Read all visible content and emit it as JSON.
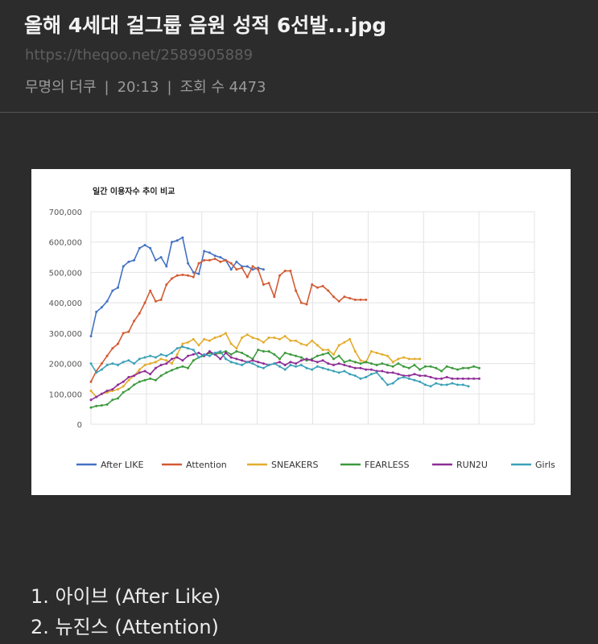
{
  "post": {
    "title": "올해 4세대 걸그룹 음원 성적 6선발...jpg",
    "url": "https://theqoo.net/2589905889",
    "author": "무명의 더쿠",
    "time": "20:13",
    "views": "조회 수 4473"
  },
  "list": [
    "1. 아이브 (After Like)",
    "2. 뉴진스 (Attention)"
  ],
  "chart_data": {
    "type": "line",
    "title": "일간 이용자수 추이 비교",
    "ylim": [
      0,
      700000
    ],
    "yticks": [
      "700,000",
      "600,000",
      "500,000",
      "400,000",
      "300,000",
      "200,000",
      "100,000",
      "0"
    ],
    "grid": true,
    "legend_position": "bottom",
    "series": [
      {
        "name": "After LIKE",
        "color": "#4472c4",
        "values": [
          290000,
          370000,
          385000,
          405000,
          440000,
          450000,
          520000,
          535000,
          540000,
          580000,
          590000,
          580000,
          540000,
          550000,
          520000,
          600000,
          605000,
          615000,
          530000,
          500000,
          495000,
          570000,
          565000,
          555000,
          550000,
          540000,
          510000,
          535000,
          520000,
          520000,
          510000,
          515000,
          510000
        ]
      },
      {
        "name": "Attention",
        "color": "#d35a34",
        "values": [
          140000,
          175000,
          200000,
          225000,
          250000,
          265000,
          300000,
          305000,
          340000,
          365000,
          400000,
          440000,
          405000,
          410000,
          460000,
          480000,
          490000,
          492000,
          490000,
          485000,
          530000,
          540000,
          540000,
          545000,
          535000,
          540000,
          530000,
          510000,
          515000,
          485000,
          520000,
          510000,
          460000,
          465000,
          420000,
          490000,
          505000,
          505000,
          440000,
          400000,
          395000,
          460000,
          450000,
          455000,
          440000,
          420000,
          405000,
          420000,
          415000,
          410000,
          410000,
          410000
        ]
      },
      {
        "name": "SNEAKERS",
        "color": "#e3ac2c",
        "values": [
          110000,
          90000,
          100000,
          105000,
          110000,
          115000,
          125000,
          145000,
          160000,
          180000,
          195000,
          200000,
          205000,
          215000,
          210000,
          200000,
          230000,
          265000,
          270000,
          280000,
          260000,
          280000,
          275000,
          285000,
          290000,
          300000,
          265000,
          250000,
          285000,
          295000,
          285000,
          280000,
          270000,
          285000,
          285000,
          280000,
          290000,
          275000,
          275000,
          265000,
          260000,
          275000,
          260000,
          245000,
          245000,
          230000,
          260000,
          270000,
          280000,
          240000,
          210000,
          205000,
          240000,
          235000,
          230000,
          225000,
          205000,
          215000,
          220000,
          215000,
          215000,
          215000
        ]
      },
      {
        "name": "FEARLESS",
        "color": "#3c9a3c",
        "values": [
          55000,
          60000,
          62000,
          65000,
          80000,
          85000,
          105000,
          115000,
          130000,
          140000,
          145000,
          150000,
          145000,
          160000,
          170000,
          178000,
          185000,
          190000,
          185000,
          210000,
          220000,
          225000,
          235000,
          230000,
          235000,
          240000,
          230000,
          240000,
          235000,
          225000,
          215000,
          245000,
          240000,
          240000,
          230000,
          215000,
          235000,
          230000,
          225000,
          220000,
          210000,
          215000,
          225000,
          230000,
          235000,
          215000,
          225000,
          205000,
          210000,
          205000,
          200000,
          205000,
          200000,
          195000,
          200000,
          195000,
          190000,
          200000,
          190000,
          185000,
          195000,
          180000,
          190000,
          190000,
          185000,
          175000,
          190000,
          185000,
          180000,
          185000,
          185000,
          190000,
          185000
        ]
      },
      {
        "name": "RUN2U",
        "color": "#8e2d96",
        "values": [
          80000,
          90000,
          100000,
          110000,
          115000,
          130000,
          140000,
          155000,
          160000,
          170000,
          175000,
          165000,
          185000,
          195000,
          200000,
          215000,
          220000,
          210000,
          225000,
          230000,
          235000,
          225000,
          240000,
          230000,
          215000,
          235000,
          220000,
          215000,
          210000,
          205000,
          210000,
          205000,
          200000,
          195000,
          200000,
          205000,
          195000,
          205000,
          200000,
          210000,
          215000,
          210000,
          205000,
          210000,
          200000,
          195000,
          200000,
          195000,
          190000,
          185000,
          185000,
          180000,
          180000,
          175000,
          175000,
          170000,
          170000,
          165000,
          160000,
          160000,
          165000,
          160000,
          160000,
          155000,
          150000,
          150000,
          155000,
          150000,
          150000,
          150000,
          150000,
          150000,
          150000
        ]
      },
      {
        "name": "Girls",
        "color": "#3aa1b8",
        "values": [
          200000,
          170000,
          180000,
          195000,
          200000,
          195000,
          205000,
          210000,
          200000,
          215000,
          220000,
          225000,
          220000,
          230000,
          225000,
          235000,
          250000,
          255000,
          250000,
          245000,
          220000,
          230000,
          225000,
          235000,
          240000,
          215000,
          205000,
          200000,
          195000,
          205000,
          200000,
          190000,
          185000,
          195000,
          200000,
          190000,
          180000,
          195000,
          190000,
          195000,
          185000,
          180000,
          190000,
          185000,
          180000,
          175000,
          170000,
          175000,
          165000,
          160000,
          150000,
          155000,
          165000,
          170000,
          150000,
          130000,
          135000,
          150000,
          155000,
          150000,
          145000,
          140000,
          130000,
          125000,
          135000,
          130000,
          130000,
          135000,
          130000,
          130000,
          125000
        ]
      }
    ]
  }
}
